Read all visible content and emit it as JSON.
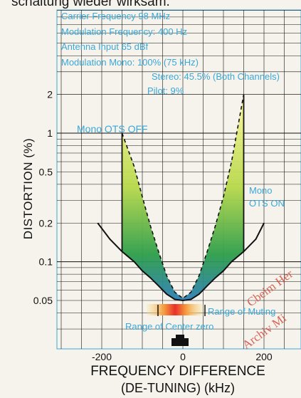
{
  "page": {
    "top_text": "schaltung wieder wirksam."
  },
  "watermark": {
    "line1": "Cbeim Her",
    "line2": "Archiv Mi"
  },
  "chart_data": {
    "type": "line",
    "xlabel_line1": "FREQUENCY DIFFERENCE",
    "xlabel_line2": "(DE-TUNING) (kHz)",
    "ylabel": "DISTORTION (%)",
    "x_ticks": [
      -200,
      0,
      200
    ],
    "y_ticks": [
      2,
      1,
      0.5,
      0.2,
      0.1,
      0.05
    ],
    "xlim": [
      -300,
      300
    ],
    "ylim": [
      0.02,
      5
    ],
    "y_scale": "log",
    "grid": true,
    "info_lines": [
      "Carrier Frequency 98 MHz",
      "Modulation Frequency: 400 Hz",
      "Antenna Input 65 dBf",
      "Modulation   Mono:  100% (75 kHz)",
      "Stereo: 45.5% (Both Channels)",
      "Pilot:   9%"
    ],
    "annotations": {
      "mono_ots_off": "Mono OTS OFF",
      "mono_ots_on_1": "Mono",
      "mono_ots_on_2": "OTS ON",
      "range_muting": "Range of Muting",
      "range_center": "Range of Center zero"
    },
    "series": [
      {
        "name": "Mono OTS ON",
        "style": "solid",
        "x": [
          -210,
          -180,
          -150,
          -120,
          -100,
          -80,
          -60,
          -40,
          -20,
          0,
          20,
          40,
          60,
          80,
          100,
          120,
          150,
          180,
          200
        ],
        "y": [
          0.2,
          0.15,
          0.12,
          0.1,
          0.085,
          0.075,
          0.065,
          0.056,
          0.051,
          0.05,
          0.051,
          0.056,
          0.065,
          0.075,
          0.085,
          0.1,
          0.12,
          0.15,
          0.2
        ]
      },
      {
        "name": "Mono OTS OFF",
        "style": "dashed",
        "x": [
          -150,
          -120,
          -100,
          -80,
          -60,
          -40,
          -20,
          0,
          20,
          40,
          60,
          80,
          100,
          120,
          150
        ],
        "y": [
          1.0,
          0.55,
          0.32,
          0.19,
          0.12,
          0.078,
          0.058,
          0.052,
          0.058,
          0.078,
          0.12,
          0.19,
          0.32,
          0.6,
          2.0
        ]
      }
    ]
  }
}
